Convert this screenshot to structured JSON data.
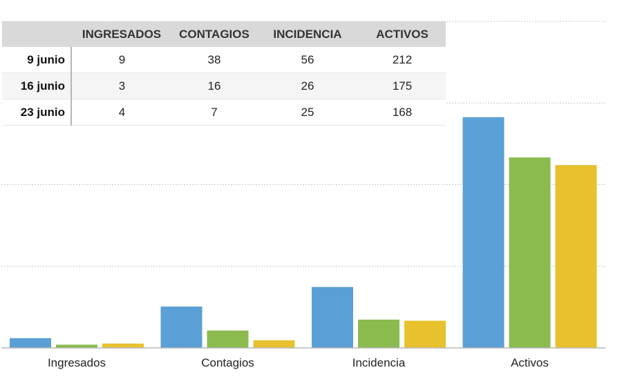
{
  "chart_data": {
    "type": "bar",
    "categories": [
      "Ingresados",
      "Contagios",
      "Incidencia",
      "Activos"
    ],
    "series": [
      {
        "name": "9 junio",
        "values": [
          9,
          38,
          56,
          212
        ],
        "color": "#5aa0d6"
      },
      {
        "name": "16 junio",
        "values": [
          3,
          16,
          26,
          175
        ],
        "color": "#8bbb4f"
      },
      {
        "name": "23 junio",
        "values": [
          4,
          7,
          25,
          168
        ],
        "color": "#e8c12e"
      }
    ],
    "ylim": [
      0,
      300
    ],
    "grid": true,
    "title": "",
    "xlabel": "",
    "ylabel": ""
  },
  "table": {
    "headers": [
      "INGRESADOS",
      "CONTAGIOS",
      "INCIDENCIA",
      "ACTIVOS"
    ],
    "rows": [
      {
        "label": "9 junio",
        "values": [
          "9",
          "38",
          "56",
          "212"
        ]
      },
      {
        "label": "16 junio",
        "values": [
          "3",
          "16",
          "26",
          "175"
        ]
      },
      {
        "label": "23 junio",
        "values": [
          "4",
          "7",
          "25",
          "168"
        ]
      }
    ]
  }
}
